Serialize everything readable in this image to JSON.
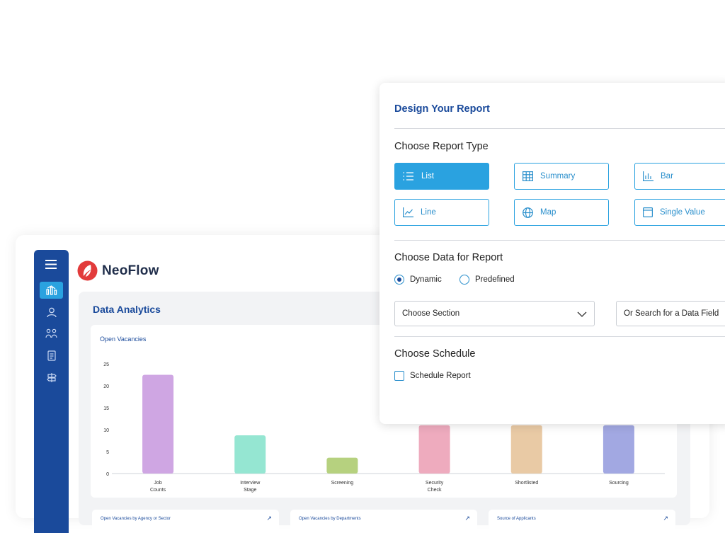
{
  "app": {
    "name": "NeoFlow"
  },
  "dashboard": {
    "title": "Data Analytics",
    "mini_cards": [
      {
        "title": "Open Vacancies by Agency or Sector"
      },
      {
        "title": "Open Vacancies by Departments"
      },
      {
        "title": "Source of Applicants"
      }
    ]
  },
  "sidebar": {
    "items": [
      {
        "icon": "analytics-icon",
        "active": true
      },
      {
        "icon": "user-icon",
        "active": false
      },
      {
        "icon": "interview-icon",
        "active": false
      },
      {
        "icon": "document-icon",
        "active": false
      },
      {
        "icon": "signpost-icon",
        "active": false
      }
    ]
  },
  "chart_data": {
    "type": "bar",
    "title": "Open Vacancies",
    "categories": [
      "Job\nCounts",
      "Interview\nStage",
      "Screening",
      "Security\nCheck",
      "Shortlisted",
      "Sourcing"
    ],
    "values": [
      22.5,
      8.7,
      3.6,
      11,
      11,
      11
    ],
    "colors": [
      "#cfa6e3",
      "#95e6d2",
      "#b6d17f",
      "#eeabbe",
      "#e9caa5",
      "#a2a8e2"
    ],
    "y_ticks": [
      0,
      5,
      10,
      15,
      20,
      25
    ],
    "ylim": [
      0,
      25
    ],
    "grid": false
  },
  "report": {
    "title": "Design Your Report",
    "type_heading": "Choose Report Type",
    "types": [
      {
        "label": "List",
        "icon": "list-icon",
        "selected": true
      },
      {
        "label": "Summary",
        "icon": "table-icon",
        "selected": false
      },
      {
        "label": "Bar",
        "icon": "bar-chart-icon",
        "selected": false
      },
      {
        "label": "Line",
        "icon": "line-chart-icon",
        "selected": false
      },
      {
        "label": "Map",
        "icon": "globe-icon",
        "selected": false
      },
      {
        "label": "Single Value",
        "icon": "single-value-icon",
        "selected": false
      }
    ],
    "data_heading": "Choose Data for Report",
    "data_options": [
      {
        "label": "Dynamic",
        "selected": true
      },
      {
        "label": "Predefined",
        "selected": false
      }
    ],
    "section_select": "Choose Section",
    "search_field": "Or Search for a Data Field",
    "schedule_heading": "Choose Schedule",
    "schedule_checkbox": "Schedule Report",
    "schedule_checked": false
  },
  "colors": {
    "primary": "#1a4a9b",
    "accent": "#2aa2e0",
    "brand_red": "#e23b3b"
  }
}
